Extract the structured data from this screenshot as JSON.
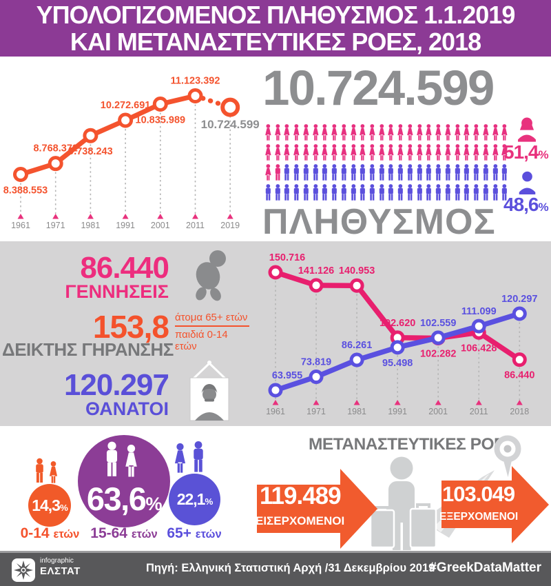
{
  "header": {
    "line1": "ΥΠΟΛΟΓΙΖΟΜΕΝΟΣ ΠΛΗΘΥΣΜΟΣ 1.1.2019",
    "line2": "ΚΑΙ ΜΕΤΑΝΑΣΤΕΥΤΙΚΕΣ ΡΟΕΣ, 2018"
  },
  "population": {
    "total": "10.724.599",
    "label": "ΠΛΗΘΥΣΜΟΣ",
    "female_pct": "51,4",
    "male_pct": "48,6",
    "pct_sign": "%"
  },
  "pictogram": {
    "rows": 4,
    "per_row": 26,
    "pink_female": 53,
    "pink_male": 1
  },
  "colors": {
    "pink": "#e8327d",
    "pink_line": "#e81f6e",
    "blue": "#5b4fdc",
    "blue_line": "#5a50e0",
    "orange": "#f4522c",
    "arrow_orange": "#f15b2e",
    "header_purple": "#8c3a95",
    "circle_purple": "#8c3d96",
    "gray": "#8d8e90",
    "dark_gray": "#77787a",
    "axis_marker": "#e8327d"
  },
  "chart_data": [
    {
      "id": "population-history",
      "type": "line",
      "x": [
        "1961",
        "1971",
        "1981",
        "1991",
        "2001",
        "2011",
        "2019"
      ],
      "axis_marker_color": "#e8327d",
      "grid": "dashed-vertical",
      "series": [
        {
          "name": "population",
          "color": "#f4532e",
          "values": [
            8388553,
            8768372,
            9738243,
            10272691,
            10835989,
            11123392,
            10724599
          ],
          "labels": [
            "8.388.553",
            "8.768.372",
            "9.738.243",
            "10.272.691",
            "10.835.989",
            "11.123.392",
            "10.724.599"
          ],
          "label_positions": [
            "below",
            "above",
            "below",
            "above",
            "below",
            "above",
            "below"
          ],
          "last_segment_dotted": true,
          "last_label_color": "#8d8e90"
        }
      ]
    },
    {
      "id": "births-deaths",
      "type": "line",
      "x": [
        "1961",
        "1971",
        "1981",
        "1991",
        "2001",
        "2011",
        "2018"
      ],
      "axis_marker_color": "#e8327d",
      "grid": "dashed-vertical",
      "series": [
        {
          "name": "ΓΕΝΝΗΣΕΙΣ",
          "color": "#e81f6e",
          "values": [
            150716,
            141126,
            140953,
            102620,
            102282,
            106428,
            86440
          ],
          "labels": [
            "150.716",
            "141.126",
            "140.953",
            "102.620",
            "102.282",
            "106.428",
            "86.440"
          ],
          "label_positions": [
            "above",
            "above",
            "above",
            "above",
            "below",
            "below",
            "below"
          ]
        },
        {
          "name": "ΘΑΝΑΤΟΙ",
          "color": "#5a50e0",
          "values": [
            63955,
            73819,
            86261,
            95498,
            102559,
            111099,
            120297
          ],
          "labels": [
            "63.955",
            "73.819",
            "86.261",
            "95.498",
            "102.559",
            "111.099",
            "120.297"
          ],
          "label_positions": [
            "above",
            "above",
            "above",
            "below",
            "above",
            "above",
            "above"
          ]
        }
      ]
    }
  ],
  "vital": {
    "births": {
      "value": "86.440",
      "label": "ΓΕΝΝΗΣΕΙΣ"
    },
    "aging": {
      "value": "153,8",
      "label": "ΔΕΙΚΤΗΣ ΓΗΡΑΝΣΗΣ",
      "numerator": "άτομα 65+ ετών",
      "denominator": "παιδιά 0-14 ετών"
    },
    "deaths": {
      "value": "120.297",
      "label": "ΘΑΝΑΤΟΙ"
    }
  },
  "age_groups": [
    {
      "pct": "14,3",
      "sign": "%",
      "range": "0-14",
      "unit": "ετών"
    },
    {
      "pct": "63,6",
      "sign": "%",
      "range": "15-64",
      "unit": "ετών"
    },
    {
      "pct": "22,1",
      "sign": "%",
      "range": "65+",
      "unit": "ετών"
    }
  ],
  "migration": {
    "title": "ΜΕΤΑΝΑΣΤΕΥΤΙΚΕΣ ΡΟΕΣ",
    "inflow": {
      "value": "119.489",
      "label": "ΕΙΣΕΡΧΟΜΕΝΟΙ"
    },
    "outflow": {
      "value": "103.049",
      "label": "ΕΞΕΡΧΟΜΕΝΟΙ"
    }
  },
  "footer": {
    "logo_top": "infographic",
    "logo_name": "ΕΛΣΤΑΤ",
    "source": "Πηγή: Ελληνική Στατιστική Αρχή /31 Δεκεμβρίου 2019",
    "hashtag": "#GreekDataMatter"
  }
}
